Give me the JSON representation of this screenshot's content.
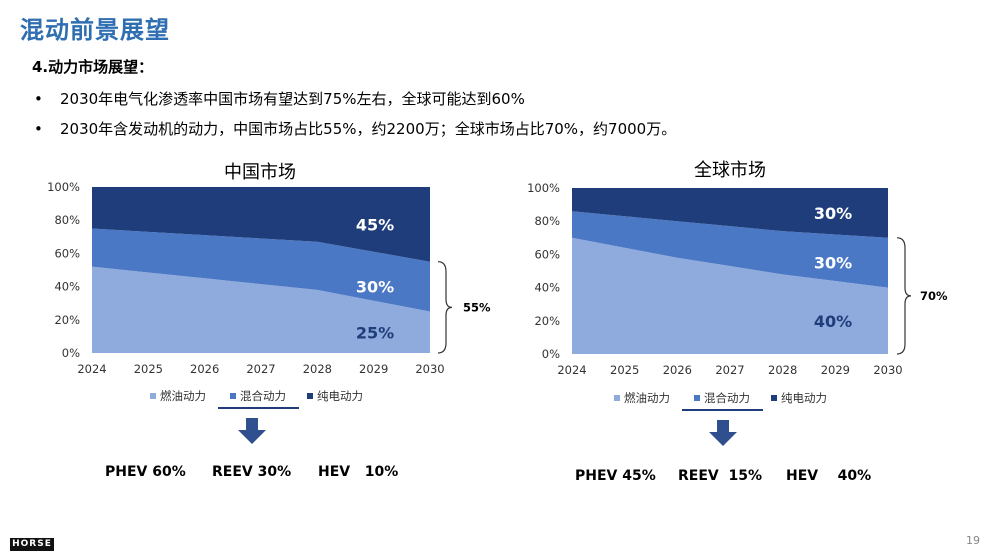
{
  "title": "混动前景展望",
  "subheading": "4.动力市场展望：",
  "bullets": [
    "2030年电气化渗透率中国市场有望达到75%左右，全球可能达到60%",
    "2030年含发动机的动力，中国市场占比55%，约2200万；全球市场占比70%，约7000万。"
  ],
  "bullet_symbol": "•",
  "logo_text": "HORSE",
  "page_number": "19",
  "chart_data": [
    {
      "type": "area",
      "title": "中国市场",
      "x": [
        "2024",
        "2025",
        "2026",
        "2027",
        "2028",
        "2029",
        "2030"
      ],
      "y_ticks": [
        "0%",
        "20%",
        "40%",
        "60%",
        "80%",
        "100%"
      ],
      "ylim": [
        0,
        100
      ],
      "stacking": "percent",
      "series": [
        {
          "name": "燃油动力",
          "color": "#8faadc",
          "values": [
            52,
            48.5,
            45,
            41.5,
            38,
            31.5,
            25
          ]
        },
        {
          "name": "混合动力",
          "color": "#4a78c4",
          "values": [
            23,
            24.5,
            26,
            27.5,
            29,
            29.5,
            30
          ]
        },
        {
          "name": "纯电动力",
          "color": "#1f3d7a",
          "values": [
            25,
            27,
            29,
            31,
            33,
            39,
            45
          ]
        }
      ],
      "segment_labels": [
        "25%",
        "30%",
        "45%"
      ],
      "brace_label": "55%",
      "mix_text": [
        "PHEV 60%",
        "REEV 30%",
        "HEV   10%"
      ]
    },
    {
      "type": "area",
      "title": "全球市场",
      "x": [
        "2024",
        "2025",
        "2026",
        "2027",
        "2028",
        "2029",
        "2030"
      ],
      "y_ticks": [
        "0%",
        "20%",
        "40%",
        "60%",
        "80%",
        "100%"
      ],
      "ylim": [
        0,
        100
      ],
      "stacking": "percent",
      "series": [
        {
          "name": "燃油动力",
          "color": "#8faadc",
          "values": [
            70,
            64,
            58,
            53,
            48,
            44,
            40
          ]
        },
        {
          "name": "混合动力",
          "color": "#4a78c4",
          "values": [
            16,
            19,
            22,
            24,
            26,
            28,
            30
          ]
        },
        {
          "name": "纯电动力",
          "color": "#1f3d7a",
          "values": [
            14,
            17,
            20,
            23,
            26,
            28,
            30
          ]
        }
      ],
      "segment_labels": [
        "40%",
        "30%",
        "30%"
      ],
      "brace_label": "70%",
      "mix_text": [
        "PHEV 45%",
        "REEV  15%",
        "HEV    40%"
      ]
    }
  ]
}
